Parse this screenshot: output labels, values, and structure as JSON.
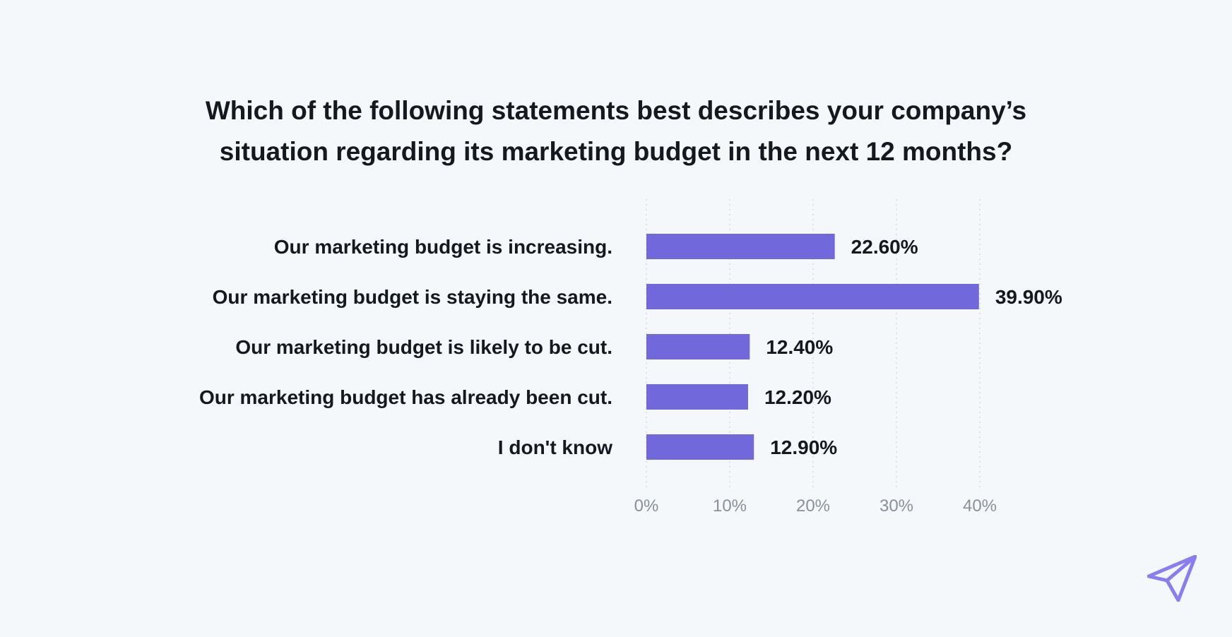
{
  "chart_data": {
    "type": "bar",
    "orientation": "horizontal",
    "title_lines": [
      "Which of the following statements best describes your company’s",
      "situation regarding its marketing budget in the next 12 months?"
    ],
    "categories": [
      "Our marketing budget is increasing.",
      "Our marketing budget is staying the same.",
      "Our marketing budget is likely to be cut.",
      "Our marketing budget has already been cut.",
      "I don't know"
    ],
    "values": [
      22.6,
      39.9,
      12.4,
      12.2,
      12.9
    ],
    "value_labels": [
      "22.60%",
      "39.90%",
      "12.40%",
      "12.20%",
      "12.90%"
    ],
    "xlim": [
      0,
      40
    ],
    "x_ticks": [
      0,
      10,
      20,
      30,
      40
    ],
    "x_tick_labels": [
      "0%",
      "10%",
      "20%",
      "30%",
      "40%"
    ],
    "grid": "vertical dotted",
    "bar_color": "#7068db",
    "text_color": "#14191f",
    "tick_color": "#8a9099",
    "grid_color": "#d5dae0",
    "background_color": "#f4f8fb"
  },
  "logo": {
    "icon": "paper-plane-arrow-icon",
    "color": "#8b7cf0"
  }
}
